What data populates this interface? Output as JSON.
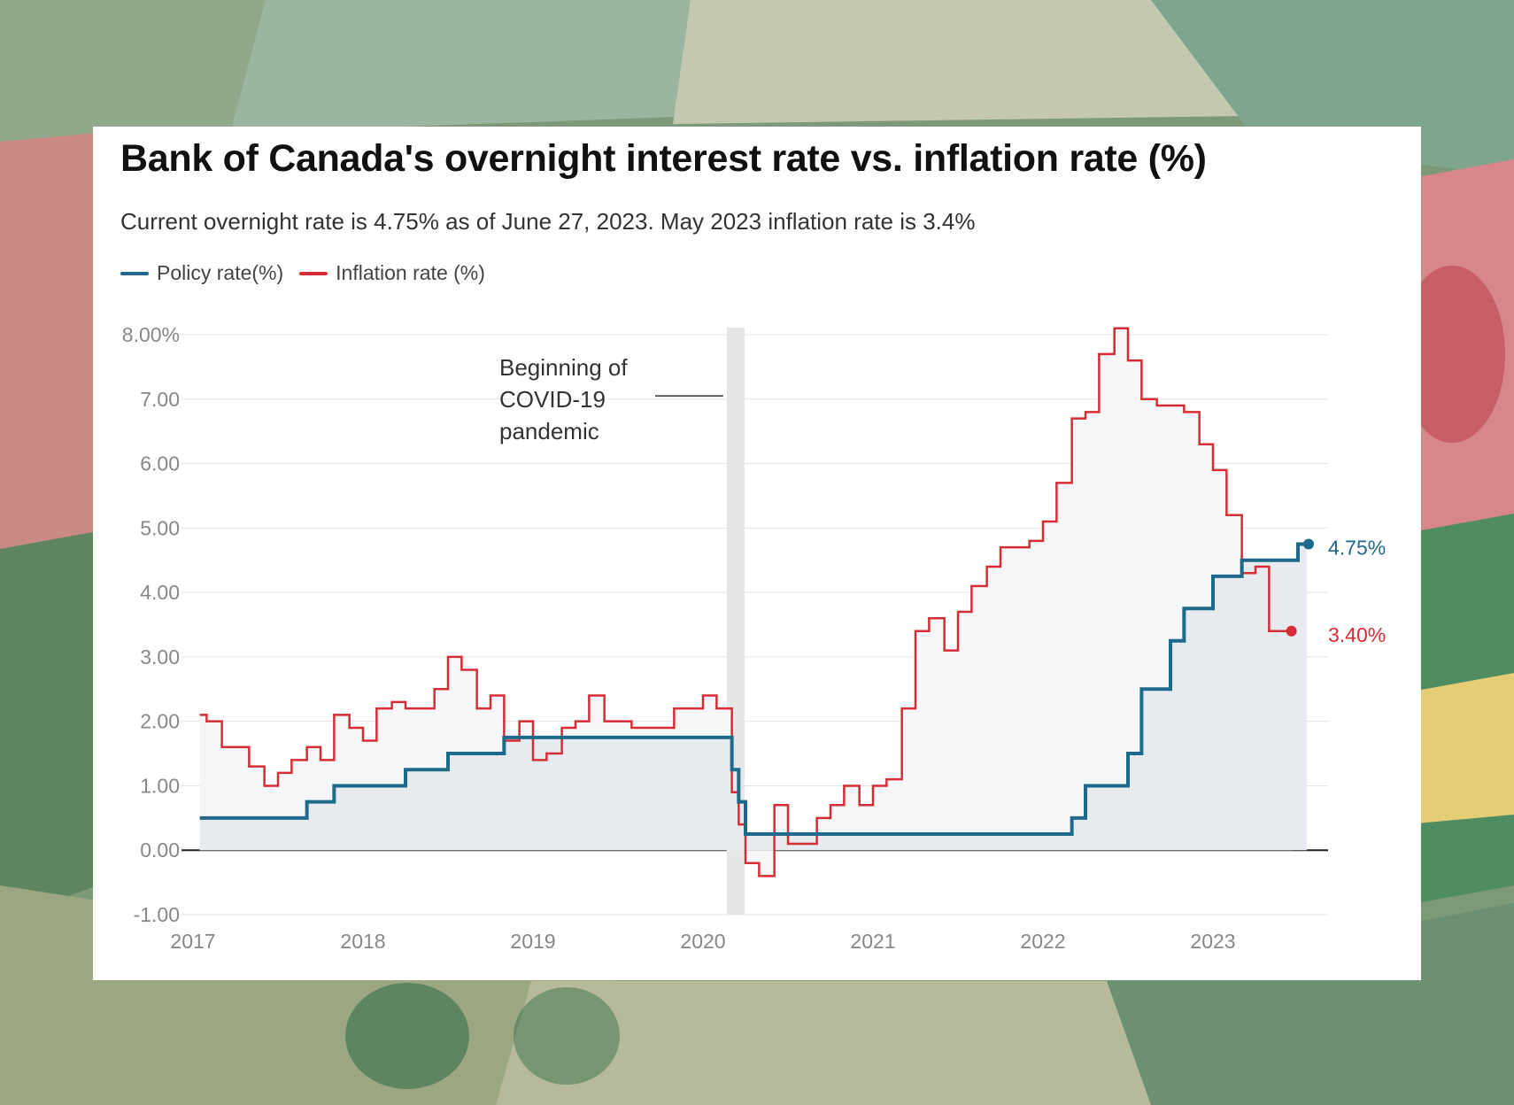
{
  "colors": {
    "policy": "#1f6a8a",
    "inflation": "#d62c35",
    "covid_band": "#e6e6e6"
  },
  "chart_data": {
    "type": "line",
    "title": "Bank of Canada's overnight interest rate vs. inflation rate (%)",
    "subtitle": "Current overnight rate is 4.75% as of June 27, 2023. May 2023 inflation rate is 3.4%",
    "xlabel": "",
    "ylabel": "",
    "xlim": [
      2017.0,
      2023.9
    ],
    "ylim": [
      -1,
      8
    ],
    "grid": true,
    "x_ticks": [
      2017,
      2018,
      2019,
      2020,
      2021,
      2022,
      2023
    ],
    "y_ticks": [
      {
        "value": 8,
        "label": "8.00%"
      },
      {
        "value": 7,
        "label": "7.00"
      },
      {
        "value": 6,
        "label": "6.00"
      },
      {
        "value": 5,
        "label": "5.00"
      },
      {
        "value": 4,
        "label": "4.00"
      },
      {
        "value": 3,
        "label": "3.00"
      },
      {
        "value": 2,
        "label": "2.00"
      },
      {
        "value": 1,
        "label": "1.00"
      },
      {
        "value": 0,
        "label": "0.00"
      },
      {
        "value": -1,
        "label": "-1.00"
      }
    ],
    "annotation": {
      "lines": [
        "Beginning of",
        "COVID-19",
        "pandemic"
      ],
      "x_start": 2020.14,
      "x_end": 2020.25,
      "line_y": 7.05
    },
    "series": [
      {
        "name": "Policy rate(%)",
        "shape": "step",
        "end_label": "4.75%",
        "x": [
          2017.04,
          2017.5,
          2017.67,
          2017.83,
          2018.0,
          2018.25,
          2018.5,
          2018.83,
          2019.0,
          2019.5,
          2020.0,
          2020.17,
          2020.21,
          2020.25,
          2020.5,
          2021.0,
          2021.5,
          2022.0,
          2022.17,
          2022.25,
          2022.33,
          2022.5,
          2022.58,
          2022.67,
          2022.75,
          2022.83,
          2022.92,
          2023.0,
          2023.08,
          2023.17,
          2023.25,
          2023.33,
          2023.42,
          2023.5
        ],
        "y": [
          0.5,
          0.5,
          0.75,
          1.0,
          1.0,
          1.25,
          1.5,
          1.75,
          1.75,
          1.75,
          1.75,
          1.25,
          0.75,
          0.25,
          0.25,
          0.25,
          0.25,
          0.25,
          0.5,
          1.0,
          1.0,
          1.5,
          2.5,
          2.5,
          3.25,
          3.75,
          3.75,
          4.25,
          4.25,
          4.5,
          4.5,
          4.5,
          4.5,
          4.75
        ]
      },
      {
        "name": "Inflation rate (%)",
        "shape": "step",
        "end_label": "3.40%",
        "x": [
          2017.04,
          2017.08,
          2017.17,
          2017.25,
          2017.33,
          2017.42,
          2017.5,
          2017.58,
          2017.67,
          2017.75,
          2017.83,
          2017.92,
          2018.0,
          2018.08,
          2018.17,
          2018.25,
          2018.33,
          2018.42,
          2018.5,
          2018.58,
          2018.67,
          2018.75,
          2018.83,
          2018.92,
          2019.0,
          2019.08,
          2019.17,
          2019.25,
          2019.33,
          2019.42,
          2019.5,
          2019.58,
          2019.67,
          2019.75,
          2019.83,
          2019.92,
          2020.0,
          2020.08,
          2020.17,
          2020.21,
          2020.25,
          2020.33,
          2020.42,
          2020.5,
          2020.58,
          2020.67,
          2020.75,
          2020.83,
          2020.92,
          2021.0,
          2021.08,
          2021.17,
          2021.25,
          2021.33,
          2021.42,
          2021.5,
          2021.58,
          2021.67,
          2021.75,
          2021.83,
          2021.92,
          2022.0,
          2022.08,
          2022.17,
          2022.25,
          2022.33,
          2022.42,
          2022.5,
          2022.58,
          2022.67,
          2022.75,
          2022.83,
          2022.92,
          2023.0,
          2023.08,
          2023.17,
          2023.25,
          2023.33,
          2023.42
        ],
        "y": [
          2.1,
          2.0,
          1.6,
          1.6,
          1.3,
          1.0,
          1.2,
          1.4,
          1.6,
          1.4,
          2.1,
          1.9,
          1.7,
          2.2,
          2.3,
          2.2,
          2.2,
          2.5,
          3.0,
          2.8,
          2.2,
          2.4,
          1.7,
          2.0,
          1.4,
          1.5,
          1.9,
          2.0,
          2.4,
          2.0,
          2.0,
          1.9,
          1.9,
          1.9,
          2.2,
          2.2,
          2.4,
          2.2,
          0.9,
          0.4,
          -0.2,
          -0.4,
          0.7,
          0.1,
          0.1,
          0.5,
          0.7,
          1.0,
          0.7,
          1.0,
          1.1,
          2.2,
          3.4,
          3.6,
          3.1,
          3.7,
          4.1,
          4.4,
          4.7,
          4.7,
          4.8,
          5.1,
          5.7,
          6.7,
          6.8,
          7.7,
          8.1,
          7.6,
          7.0,
          6.9,
          6.9,
          6.8,
          6.3,
          5.9,
          5.2,
          4.3,
          4.4,
          3.4,
          3.4
        ]
      }
    ]
  }
}
